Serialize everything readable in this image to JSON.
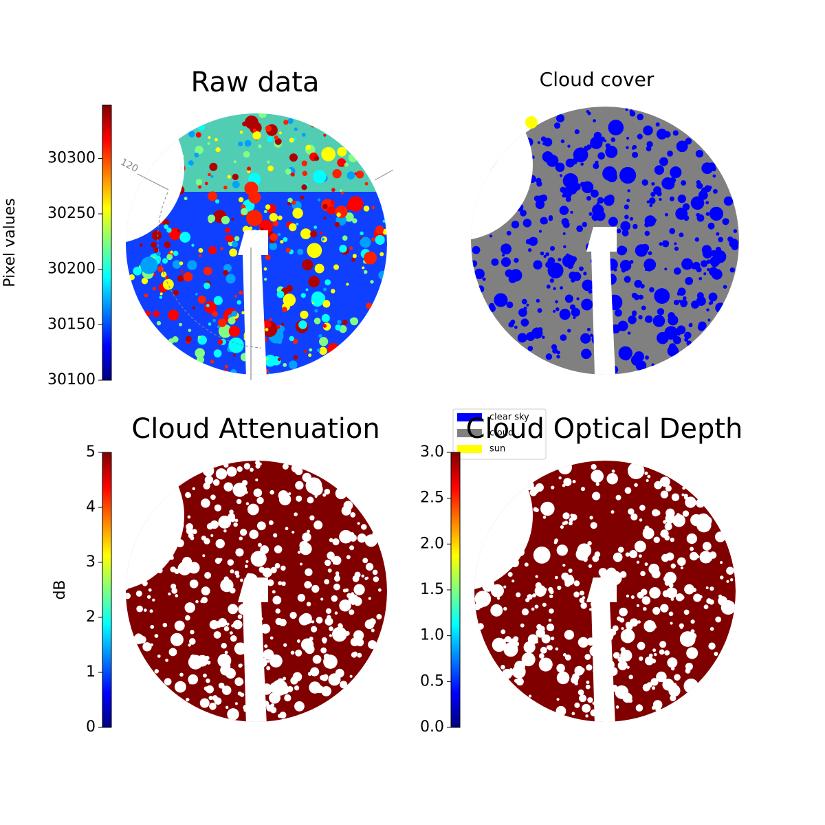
{
  "chart_data": [
    {
      "type": "image",
      "title": "Raw data",
      "colormap": "jet",
      "colorbar_label": "Pixel values",
      "ylim": [
        30100,
        30348
      ],
      "yticks": [
        30100,
        30150,
        30200,
        30250,
        30300
      ],
      "annotation": "120"
    },
    {
      "type": "image",
      "title": "Cloud cover",
      "series": [
        {
          "name": "clear sky",
          "color": "#0000ff"
        },
        {
          "name": "cloud",
          "color": "#808080"
        },
        {
          "name": "sun",
          "color": "#ffff00"
        }
      ]
    },
    {
      "type": "image",
      "title": "Cloud Attenuation",
      "colormap": "jet",
      "colorbar_label": "dB",
      "ylim": [
        0,
        5
      ],
      "yticks": [
        0,
        1,
        2,
        3,
        4,
        5
      ]
    },
    {
      "type": "image",
      "title": "Cloud Optical Depth",
      "colormap": "jet",
      "ylim": [
        0,
        3
      ],
      "yticks": [
        {
          "value": 0,
          "label": "0.0"
        },
        {
          "value": 0.5,
          "label": "0.5"
        },
        {
          "value": 1,
          "label": "1.0"
        },
        {
          "value": 1.5,
          "label": "1.5"
        },
        {
          "value": 2,
          "label": "2.0"
        },
        {
          "value": 2.5,
          "label": "2.5"
        },
        {
          "value": 3,
          "label": "3.0"
        }
      ]
    }
  ]
}
